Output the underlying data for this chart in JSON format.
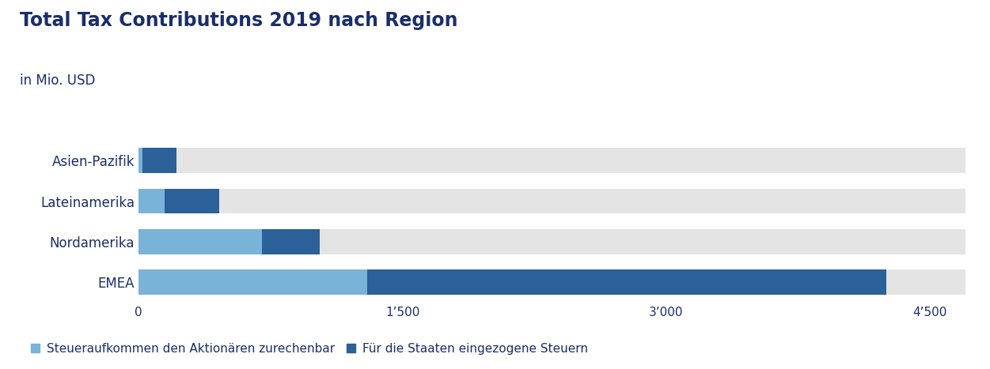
{
  "title": "Total Tax Contributions 2019 nach Region",
  "subtitle": "in Mio. USD",
  "categories": [
    "EMEA",
    "Nordamerika",
    "Lateinamerika",
    "Asien-Pazifik"
  ],
  "light_blue_values": [
    1300,
    700,
    150,
    20
  ],
  "dark_blue_values": [
    2950,
    330,
    310,
    195
  ],
  "color_light": "#7AB3D8",
  "color_dark": "#2B6098",
  "bar_bg_color": "#E4E4E4",
  "title_color": "#1A2E6B",
  "subtitle_color": "#1A2E6B",
  "label_color": "#1A2E6B",
  "tick_color": "#1A2E6B",
  "xlim": [
    0,
    4700
  ],
  "xticks": [
    0,
    1500,
    3000,
    4500
  ],
  "xtick_labels": [
    "0",
    "1’500",
    "3’000",
    "4’500"
  ],
  "legend_label_light": "Steueraufkommen den Aktionären zurechenbar",
  "legend_label_dark": "Für die Staaten eingezogene Steuern",
  "title_fontsize": 17,
  "subtitle_fontsize": 12,
  "label_fontsize": 12,
  "tick_fontsize": 11,
  "legend_fontsize": 11,
  "bar_height": 0.62,
  "background_color": "#FFFFFF",
  "fig_width": 12.51,
  "fig_height": 4.67
}
